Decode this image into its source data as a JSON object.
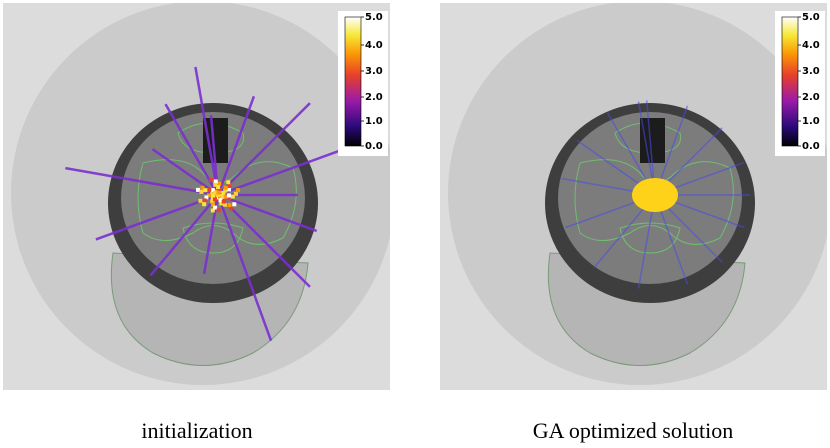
{
  "panels": [
    {
      "caption": "initialization",
      "colorbar_ticks": [
        "5.0",
        "4.0",
        "3.0",
        "2.0",
        "1.0",
        "0.0"
      ]
    },
    {
      "caption": "GA optimized solution",
      "colorbar_ticks": [
        "5.0",
        "4.0",
        "3.0",
        "2.0",
        "1.0",
        "0.0"
      ]
    }
  ]
}
